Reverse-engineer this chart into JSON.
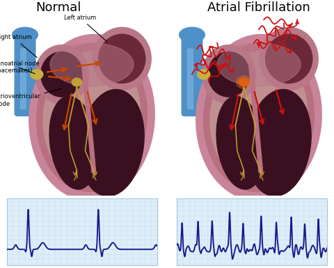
{
  "title_normal": "Normal",
  "title_af": "Atrial Fibrillation",
  "label_left_atrium": "Left atrium",
  "label_right_atrium": "Right atrium",
  "label_sinoatrial": "Sinoatrial node\n(pacemaker)",
  "label_av_node": "Atrioventricular\nnode",
  "bg_color": "#ffffff",
  "ecg_color": "#1a1a8c",
  "ecg_grid_color": "#c8dff0",
  "grid_bg": "#deeef8",
  "title_fontsize": 13,
  "label_fontsize": 6.0,
  "heart_outer": "#c8859a",
  "heart_mid": "#b87080",
  "heart_wall": "#a86070",
  "heart_inner_wall": "#c09090",
  "atrium_outer": "#b87888",
  "atrium_inner": "#6a2838",
  "ventricle_color": "#3a1020",
  "sa_node_color": "#c8b040",
  "av_node_color": "#c0a030",
  "conduction_color": "#c8a030",
  "arrow_color": "#cc4400",
  "af_arrow_color": "#cc1111",
  "blue_vessel": "#5090c8",
  "blue_vessel_dark": "#3070a8",
  "septum_color": "#8a4858"
}
